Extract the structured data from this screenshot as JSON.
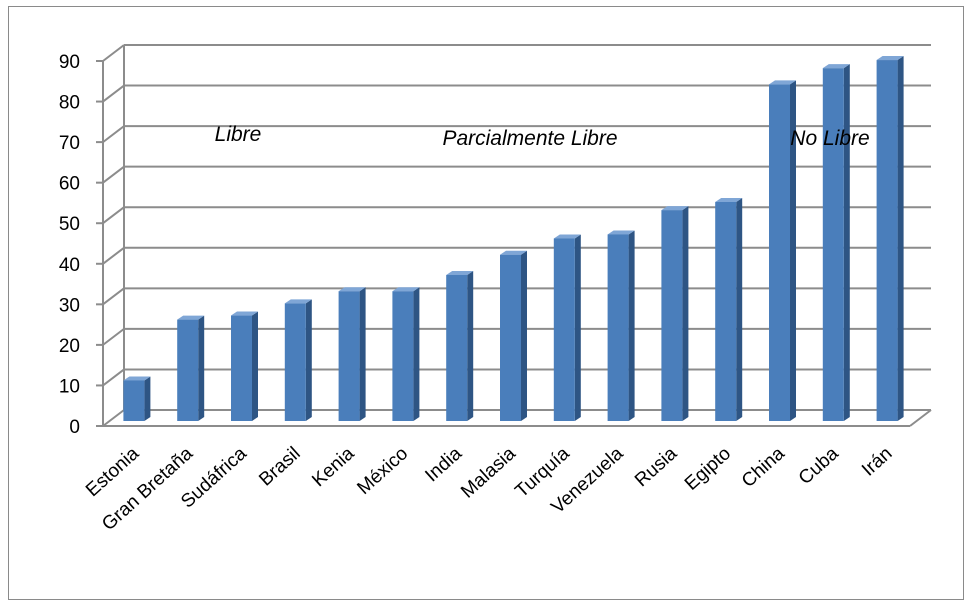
{
  "chart_data": {
    "type": "bar",
    "categories": [
      "Estonia",
      "Gran Bretaña",
      "Sudáfrica",
      "Brasil",
      "Kenia",
      "México",
      "India",
      "Malasia",
      "Turquía",
      "Venezuela",
      "Rusia",
      "Egipto",
      "China",
      "Cuba",
      "Irán"
    ],
    "values": [
      10,
      25,
      26,
      29,
      32,
      32,
      36,
      41,
      45,
      46,
      52,
      54,
      83,
      87,
      89
    ],
    "title": "",
    "xlabel": "",
    "ylabel": "",
    "ylim": [
      0,
      90
    ],
    "yticks": [
      "0",
      "10",
      "20",
      "30",
      "40",
      "50",
      "60",
      "70",
      "80",
      "90"
    ],
    "grid": true,
    "legend": "none",
    "annotations": [
      "Libre",
      "Parcialmente Libre",
      "No Libre"
    ],
    "colors": {
      "bar_front": "#4a7ebb",
      "bar_side": "#2e5584",
      "bar_top": "#7fa6d6",
      "grid": "#8c8c8c"
    }
  }
}
